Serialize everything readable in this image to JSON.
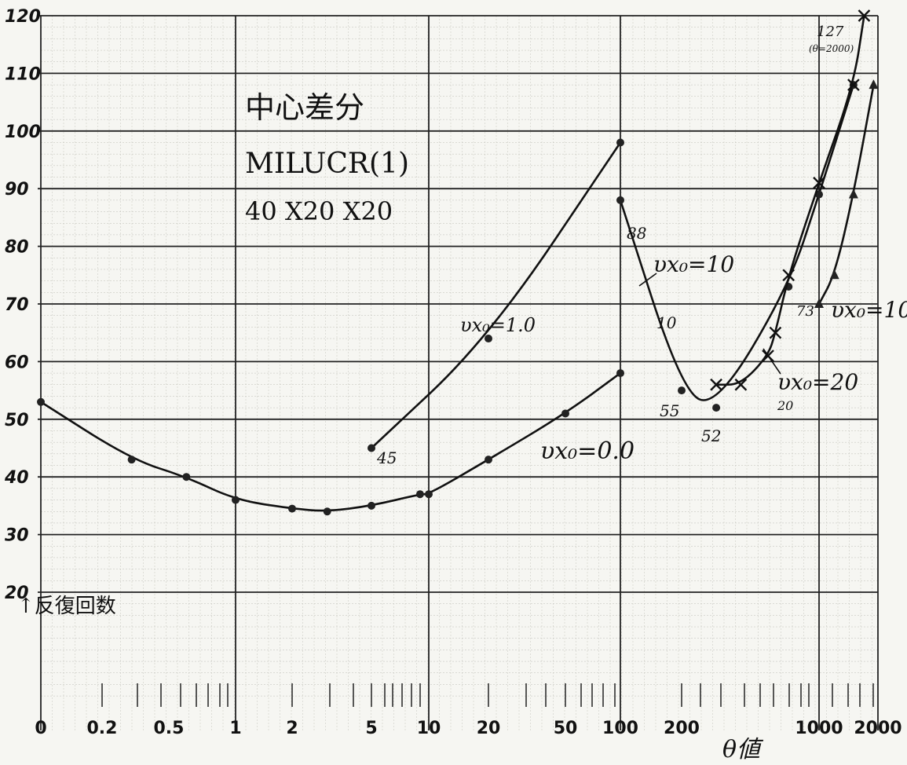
{
  "chart_data": {
    "type": "line",
    "title_lines": [
      "中心差分",
      "MILUCR(1)",
      "40 X20 X20"
    ],
    "xlabel": "θ値",
    "ylabel": "↑反復回数",
    "x_ticks": [
      "0",
      "0.2",
      "0.5",
      "1",
      "2",
      "5",
      "10",
      "20",
      "50",
      "100",
      "200",
      "1000",
      "2000"
    ],
    "y_ticks": [
      "120",
      "110",
      "100",
      "90",
      "80",
      "70",
      "60",
      "50",
      "40",
      "30",
      "20"
    ],
    "ylim": [
      20,
      120
    ],
    "grid": true,
    "series": [
      {
        "name": "vx0=0.0",
        "x": [
          "0",
          "0.3",
          "0.6",
          "1",
          "2",
          "3",
          "5",
          "9",
          "10",
          "20",
          "50",
          "100"
        ],
        "y": [
          53,
          43,
          40,
          36,
          34.5,
          34,
          35,
          37,
          37,
          43,
          51,
          58
        ]
      },
      {
        "name": "vx0=1.0",
        "x": [
          "5",
          "20",
          "100"
        ],
        "y": [
          45,
          64,
          98
        ]
      },
      {
        "name": "vx0=10",
        "x": [
          "100",
          "200",
          "300",
          "700",
          "1000",
          "1500"
        ],
        "y": [
          88,
          55,
          52,
          73,
          89,
          108
        ]
      },
      {
        "name": "vx0=20",
        "x": [
          "300",
          "400",
          "550",
          "600",
          "700",
          "1000",
          "1500",
          "1700"
        ],
        "y": [
          56,
          56,
          61,
          65,
          75,
          91,
          108,
          120
        ]
      },
      {
        "name": "vx0=100",
        "x": [
          "1000",
          "1200",
          "1500",
          "1900"
        ],
        "y": [
          70,
          75,
          89,
          108
        ]
      }
    ],
    "annotations": {
      "a45": "45",
      "a88": "88",
      "a10": "10",
      "a55": "55",
      "a52": "52",
      "a73": "73",
      "a20": "20",
      "a127": "127",
      "a127b": "(θ=2000)",
      "l_v0": "υx₀=0.0",
      "l_v1": "υx₀=1.0",
      "l_v10": "υx₀=10",
      "l_v20": "υx₀=20",
      "l_v100": "υx₀=100"
    }
  }
}
